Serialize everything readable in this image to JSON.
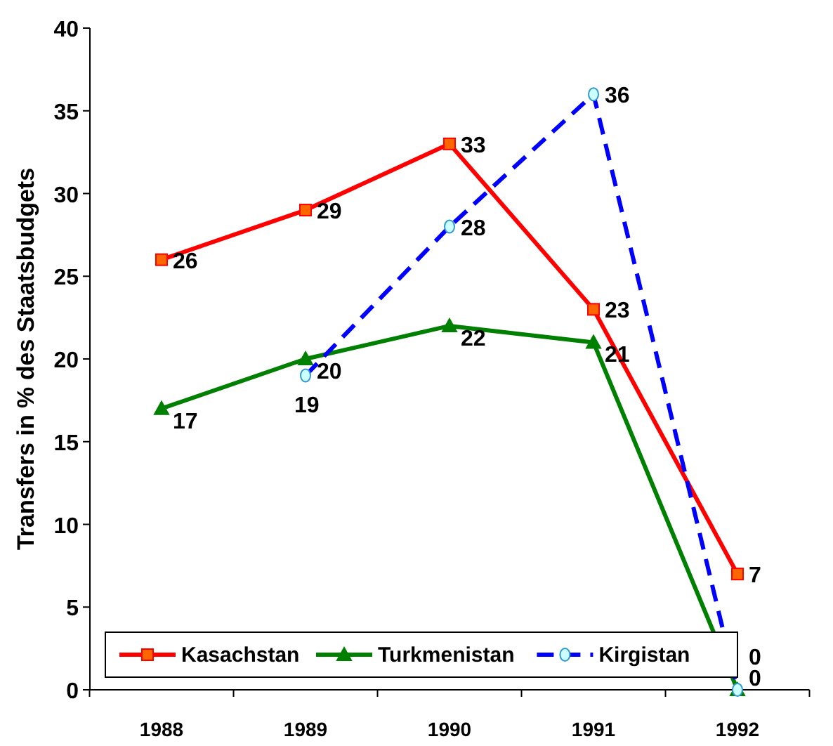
{
  "chart_data": {
    "type": "line",
    "ylabel": "Transfers in % des Staatsbudgets",
    "categories": [
      "1988",
      "1989",
      "1990",
      "1991",
      "1992"
    ],
    "series": [
      {
        "name": "Kasachstan",
        "color": "#ff0000",
        "values": [
          26,
          29,
          33,
          23,
          7
        ],
        "marker": "square",
        "line_style": "solid"
      },
      {
        "name": "Turkmenistan",
        "color": "#008000",
        "values": [
          17,
          20,
          22,
          21,
          0
        ],
        "marker": "triangle",
        "line_style": "solid"
      },
      {
        "name": "Kirgistan",
        "color": "#0000ff",
        "values": [
          null,
          19,
          28,
          36,
          0
        ],
        "marker": "circle",
        "line_style": "dashed"
      }
    ],
    "ylim": [
      0,
      40
    ],
    "yticks": [
      0,
      5,
      10,
      15,
      20,
      25,
      30,
      35,
      40
    ],
    "grid": false,
    "legend": "bottom",
    "data_labels": true
  }
}
